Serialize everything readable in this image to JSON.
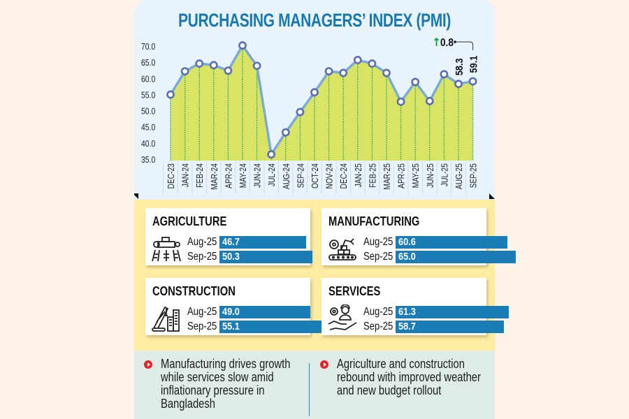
{
  "title": "PURCHASING MANAGERS’ INDEX (PMI)",
  "colors": {
    "title": "#1979ae",
    "line": "#7aaad8",
    "marker": "#5b6db3",
    "area": "#d9e464",
    "dropline": "#14a06d",
    "bar": "#1a7db6",
    "up_arrow": "#13a04a",
    "bullet": "#e0262b"
  },
  "chart_data": {
    "type": "area",
    "title": "PURCHASING MANAGERS’ INDEX (PMI)",
    "xlabel": "",
    "ylabel": "",
    "categories": [
      "DEC-23",
      "JAN-24",
      "FEB-24",
      "MAR-24",
      "APR-24",
      "MAY-24",
      "JUN-24",
      "JUL-24",
      "AUG-24",
      "SEP-24",
      "OCT-24",
      "NOV-24",
      "DEC-24",
      "JAN-25",
      "FEB-25",
      "MAR-25",
      "APR-25",
      "MAY-25",
      "JUN-25",
      "JUL-25",
      "AUG-25",
      "SEP-25"
    ],
    "values": [
      55.0,
      62.2,
      64.6,
      64.1,
      62.4,
      70.2,
      63.9,
      36.5,
      43.3,
      49.6,
      55.7,
      62.2,
      61.7,
      65.7,
      64.6,
      61.7,
      52.8,
      58.9,
      53.0,
      61.3,
      58.3,
      59.1
    ],
    "yticks": [
      "35.0",
      "40.0",
      "45.0",
      "50.0",
      "55.0",
      "60.0",
      "65.0",
      "70.0"
    ],
    "ylim": [
      35,
      70
    ],
    "grid": false,
    "data_labels": [
      {
        "category": "AUG-25",
        "text": "58.3"
      },
      {
        "category": "SEP-25",
        "text": "59.1"
      }
    ],
    "annotation": {
      "arrow": "↑",
      "text": "0.8",
      "points_to": "SEP-25"
    }
  },
  "sectors": [
    {
      "name": "AGRICULTURE",
      "icon": "tractor-icon",
      "rows": [
        {
          "label": "Aug-25",
          "value": "46.7",
          "num": 46.7
        },
        {
          "label": "Sep-25",
          "value": "50.3",
          "num": 50.3
        }
      ]
    },
    {
      "name": "MANUFACTURING",
      "icon": "factory-conveyor-icon",
      "rows": [
        {
          "label": "Aug-25",
          "value": "60.6",
          "num": 60.6
        },
        {
          "label": "Sep-25",
          "value": "65.0",
          "num": 65.0
        }
      ]
    },
    {
      "name": "CONSTRUCTION",
      "icon": "crane-building-icon",
      "rows": [
        {
          "label": "Aug-25",
          "value": "49.0",
          "num": 49.0
        },
        {
          "label": "Sep-25",
          "value": "55.1",
          "num": 55.1
        }
      ]
    },
    {
      "name": "SERVICES",
      "icon": "service-hand-icon",
      "rows": [
        {
          "label": "Aug-25",
          "value": "61.3",
          "num": 61.3
        },
        {
          "label": "Sep-25",
          "value": "58.7",
          "num": 58.7
        }
      ]
    }
  ],
  "notes": [
    "Manufacturing drives growth while services slow amid inflationary pressure in Bangladesh",
    "Agriculture and construction rebound with improved weather and new budget rollout"
  ]
}
